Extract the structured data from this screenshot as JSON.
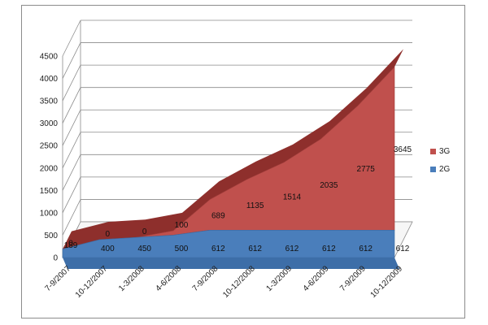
{
  "chart_data": {
    "type": "area",
    "categories": [
      "7-9/2007",
      "10-12/2007",
      "1-3/2008",
      "4-6/2008",
      "7-9/2008",
      "10-12/2008",
      "1-3/2009",
      "4-6/2009",
      "7-9/2009",
      "10-12/2009"
    ],
    "series": [
      {
        "name": "2G",
        "values": [
          189,
          400,
          450,
          500,
          612,
          612,
          612,
          612,
          612,
          612
        ],
        "color": "#4a7ebb"
      },
      {
        "name": "3G",
        "values": [
          0,
          0,
          0,
          100,
          689,
          1135,
          1514,
          2035,
          2775,
          3645
        ],
        "color": "#c0504d"
      }
    ],
    "stacked": true,
    "three_d": true,
    "yticks": [
      "0",
      "500",
      "1000",
      "1500",
      "2000",
      "2500",
      "3000",
      "3500",
      "4000",
      "4500"
    ],
    "ylim": [
      0,
      4500
    ],
    "grid": true,
    "legend_position": "right",
    "legend_order": [
      "3G",
      "2G"
    ]
  }
}
